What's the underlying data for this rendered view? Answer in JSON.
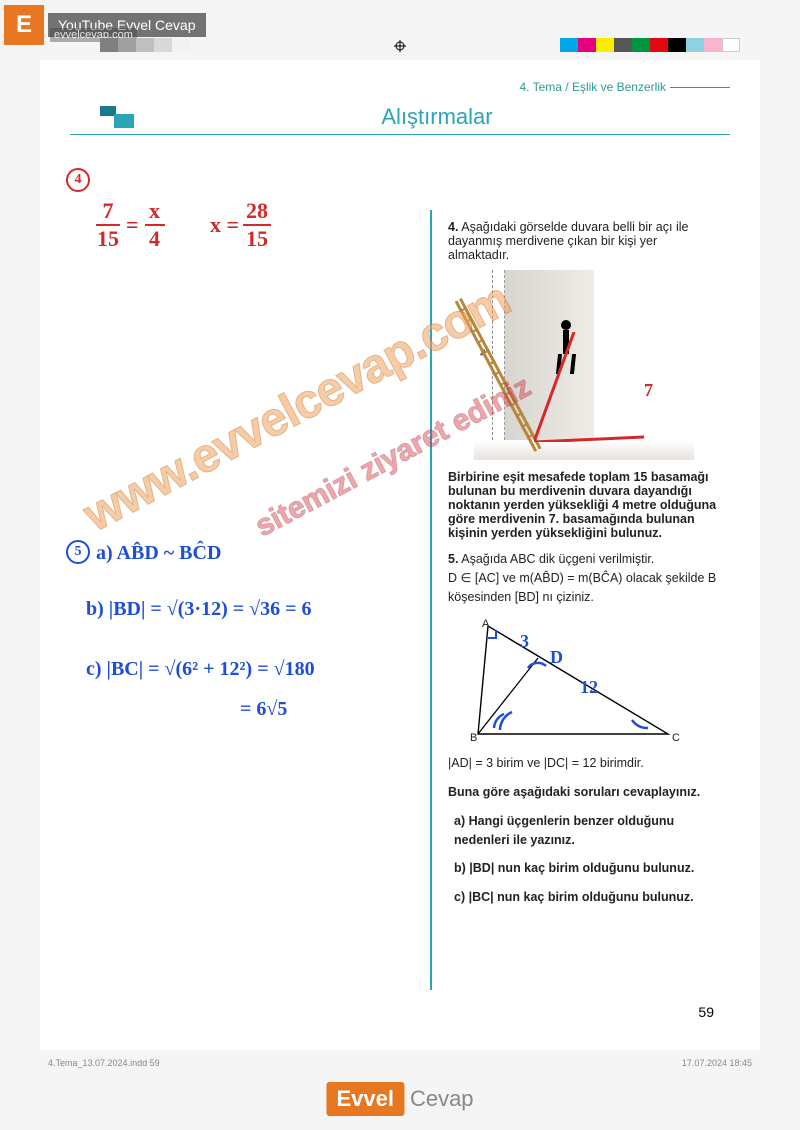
{
  "header": {
    "badge": "E",
    "youtube_label": "YouTube Evvel Cevap",
    "subdomain": "evvelcevap.com"
  },
  "color_strips": {
    "left": [
      "#808080",
      "#a0a0a0",
      "#bfbfbf",
      "#d9d9d9",
      "#f2f2f2"
    ],
    "right": [
      "#00a8e8",
      "#e6007e",
      "#ffed00",
      "#565656",
      "#009640",
      "#e30613",
      "#000000",
      "#8ed1e0",
      "#f9b4d0",
      "#ffffff"
    ]
  },
  "breadcrumb": "4. Tema / Eşlik ve Benzerlik",
  "title": "Alıştırmalar",
  "handwriting": {
    "q4_badge": "4",
    "q4_eq1_num1": "7",
    "q4_eq1_den1": "15",
    "q4_eq1_num2": "x",
    "q4_eq1_den2": "4",
    "q4_eq2_lhs": "x =",
    "q4_eq2_num": "28",
    "q4_eq2_den": "15",
    "q5_badge": "5",
    "q5_a": "a)  AB̂D ~ BĈD",
    "q5_b": "b) |BD| = √(3·12) = √36 = 6",
    "q5_c1": "c) |BC| = √(6² + 12²) = √180",
    "q5_c2": "= 6√5",
    "tri_ad": "3",
    "tri_dc": "12",
    "tri_d": "D",
    "ladder_red7": "7"
  },
  "question4": {
    "num": "4.",
    "intro": "Aşağıdaki görselde duvara belli bir açı ile dayanmış merdivene çıkan bir kişi yer almaktadır.",
    "height_label": "4",
    "bold": "Birbirine eşit mesafede toplam 15 basamağı bulunan bu merdivenin duvara dayandığı noktanın yerden yüksekliği 4 metre olduğuna göre merdivenin 7. basamağında bulunan kişinin yerden yüksekliğini bulunuz."
  },
  "question5": {
    "num": "5.",
    "intro": "Aşağıda ABC dik üçgeni verilmiştir.",
    "given": "D ∈ [AC] ve m(AB̂D) = m(BĈA) olacak şekilde B köşesinden [BD] nı çiziniz.",
    "vertices": {
      "A": "A",
      "B": "B",
      "C": "C"
    },
    "measures": "|AD| = 3 birim ve |DC| = 12 birimdir.",
    "prompt": "Buna göre aşağıdaki soruları cevaplayınız.",
    "a": "a) Hangi üçgenlerin benzer olduğunu nedenleri ile yazınız.",
    "b": "b) |BD| nun kaç birim olduğunu bulunuz.",
    "c": "c) |BC| nun kaç birim olduğunu bulunuz."
  },
  "watermarks": {
    "main": "www.evvelcevap.com",
    "sub": "sitemizi ziyaret ediniz"
  },
  "page_number": "59",
  "footer": {
    "left": "4.Tema_13.07.2024.indd   59",
    "right": "17.07.2024   18:45"
  },
  "bottom_logo": {
    "brand": "Evvel",
    "suffix": "Cevap"
  },
  "styling": {
    "accent": "#2aa5b8",
    "red": "#d62828",
    "blue": "#1d4ed8",
    "orange": "#e87722",
    "wm_orange": "#f4a261",
    "wm_red": "#e63946"
  }
}
